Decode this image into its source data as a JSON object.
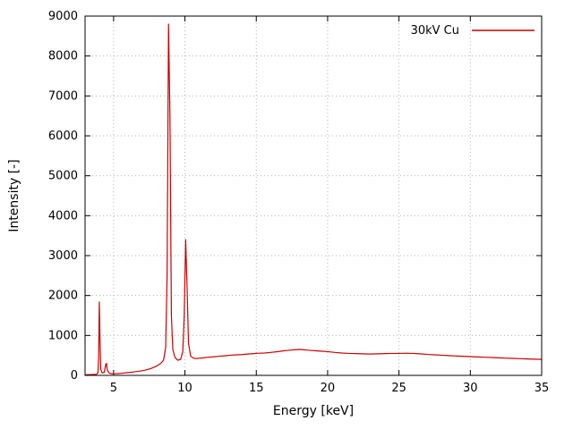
{
  "chart": {
    "legend": "30kV Cu",
    "xlabel": "Energy [keV]",
    "ylabel": "Intensity [-]",
    "line_color": "#cc0000",
    "grid_color": "#b4b4b4",
    "border_color": "#000000"
  },
  "chart_data": {
    "type": "line",
    "title": "",
    "xlabel": "Energy [keV]",
    "ylabel": "Intensity [-]",
    "xlim": [
      3,
      35
    ],
    "ylim": [
      0,
      9000
    ],
    "xticks": [
      5,
      10,
      15,
      20,
      25,
      30,
      35
    ],
    "yticks": [
      0,
      1000,
      2000,
      3000,
      4000,
      5000,
      6000,
      7000,
      8000,
      9000
    ],
    "grid": true,
    "legend_position": "top-right",
    "series": [
      {
        "name": "30kV Cu",
        "color": "#cc0000",
        "points": [
          [
            3.0,
            15
          ],
          [
            3.2,
            18
          ],
          [
            3.4,
            20
          ],
          [
            3.6,
            22
          ],
          [
            3.8,
            25
          ],
          [
            3.9,
            60
          ],
          [
            3.95,
            400
          ],
          [
            4.0,
            1840
          ],
          [
            4.05,
            900
          ],
          [
            4.1,
            150
          ],
          [
            4.2,
            60
          ],
          [
            4.35,
            80
          ],
          [
            4.45,
            280
          ],
          [
            4.5,
            300
          ],
          [
            4.55,
            150
          ],
          [
            4.65,
            70
          ],
          [
            4.8,
            45
          ],
          [
            5.0,
            40
          ],
          [
            5.3,
            45
          ],
          [
            5.6,
            55
          ],
          [
            6.0,
            70
          ],
          [
            6.4,
            85
          ],
          [
            6.8,
            105
          ],
          [
            7.2,
            130
          ],
          [
            7.6,
            170
          ],
          [
            8.0,
            230
          ],
          [
            8.3,
            300
          ],
          [
            8.5,
            380
          ],
          [
            8.65,
            700
          ],
          [
            8.75,
            2500
          ],
          [
            8.85,
            8800
          ],
          [
            8.95,
            6500
          ],
          [
            9.05,
            1500
          ],
          [
            9.15,
            650
          ],
          [
            9.3,
            450
          ],
          [
            9.5,
            380
          ],
          [
            9.7,
            400
          ],
          [
            9.85,
            600
          ],
          [
            9.95,
            1500
          ],
          [
            10.05,
            3400
          ],
          [
            10.15,
            2200
          ],
          [
            10.25,
            800
          ],
          [
            10.4,
            480
          ],
          [
            10.6,
            430
          ],
          [
            10.8,
            420
          ],
          [
            11.0,
            430
          ],
          [
            11.3,
            440
          ],
          [
            11.6,
            455
          ],
          [
            12.0,
            465
          ],
          [
            12.4,
            480
          ],
          [
            12.8,
            490
          ],
          [
            13.2,
            505
          ],
          [
            13.6,
            515
          ],
          [
            14.0,
            520
          ],
          [
            14.4,
            535
          ],
          [
            14.8,
            545
          ],
          [
            15.2,
            555
          ],
          [
            15.6,
            560
          ],
          [
            16.0,
            575
          ],
          [
            16.4,
            590
          ],
          [
            16.8,
            610
          ],
          [
            17.2,
            625
          ],
          [
            17.6,
            640
          ],
          [
            18.0,
            650
          ],
          [
            18.4,
            640
          ],
          [
            18.8,
            625
          ],
          [
            19.2,
            615
          ],
          [
            19.6,
            605
          ],
          [
            20.0,
            595
          ],
          [
            20.5,
            575
          ],
          [
            21.0,
            560
          ],
          [
            21.5,
            550
          ],
          [
            22.0,
            545
          ],
          [
            22.5,
            540
          ],
          [
            23.0,
            535
          ],
          [
            23.5,
            540
          ],
          [
            24.0,
            545
          ],
          [
            24.5,
            550
          ],
          [
            25.0,
            550
          ],
          [
            25.5,
            555
          ],
          [
            26.0,
            550
          ],
          [
            26.5,
            540
          ],
          [
            27.0,
            525
          ],
          [
            27.5,
            515
          ],
          [
            28.0,
            505
          ],
          [
            28.5,
            495
          ],
          [
            29.0,
            485
          ],
          [
            29.5,
            478
          ],
          [
            30.0,
            470
          ],
          [
            30.5,
            462
          ],
          [
            31.0,
            455
          ],
          [
            31.5,
            448
          ],
          [
            32.0,
            440
          ],
          [
            32.5,
            432
          ],
          [
            33.0,
            425
          ],
          [
            33.5,
            418
          ],
          [
            34.0,
            412
          ],
          [
            34.5,
            406
          ],
          [
            35.0,
            400
          ]
        ]
      }
    ]
  }
}
